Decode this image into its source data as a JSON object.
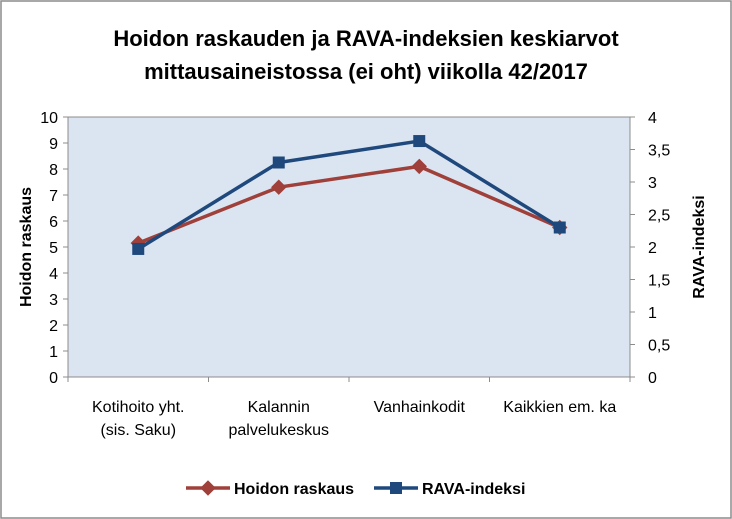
{
  "chart_data": {
    "type": "line",
    "title_lines": [
      "Hoidon raskauden ja RAVA-indeksien keskiarvot",
      "mittausaineistossa (ei oht) viikolla 42/2017"
    ],
    "categories": [
      [
        "Kotihoito yht.",
        "(sis. Saku)"
      ],
      [
        "Kalannin",
        "palvelukeskus"
      ],
      [
        "Vanhainkodit"
      ],
      [
        "Kaikkien em. ka"
      ]
    ],
    "ylabel": "Hoidon raskaus",
    "y2label": "RAVA-indeksi",
    "ylim": [
      0,
      10
    ],
    "y2lim": [
      0,
      4
    ],
    "y_ticks": [
      "0",
      "1",
      "2",
      "3",
      "4",
      "5",
      "6",
      "7",
      "8",
      "9",
      "10"
    ],
    "y2_ticks": [
      "0",
      "0,5",
      "1",
      "1,5",
      "2",
      "2,5",
      "3",
      "3,5",
      "4"
    ],
    "series": [
      {
        "name": "Hoidon raskaus",
        "axis": "left",
        "marker": "diamond",
        "color": "#a0403a",
        "values": [
          5.15,
          7.3,
          8.1,
          5.75
        ]
      },
      {
        "name": "RAVA-indeksi",
        "axis": "right",
        "marker": "square",
        "color": "#1f497d",
        "values": [
          1.97,
          3.3,
          3.63,
          2.3
        ]
      }
    ],
    "legend_position": "bottom",
    "grid": false,
    "plot_background": "#dbe5f1"
  }
}
